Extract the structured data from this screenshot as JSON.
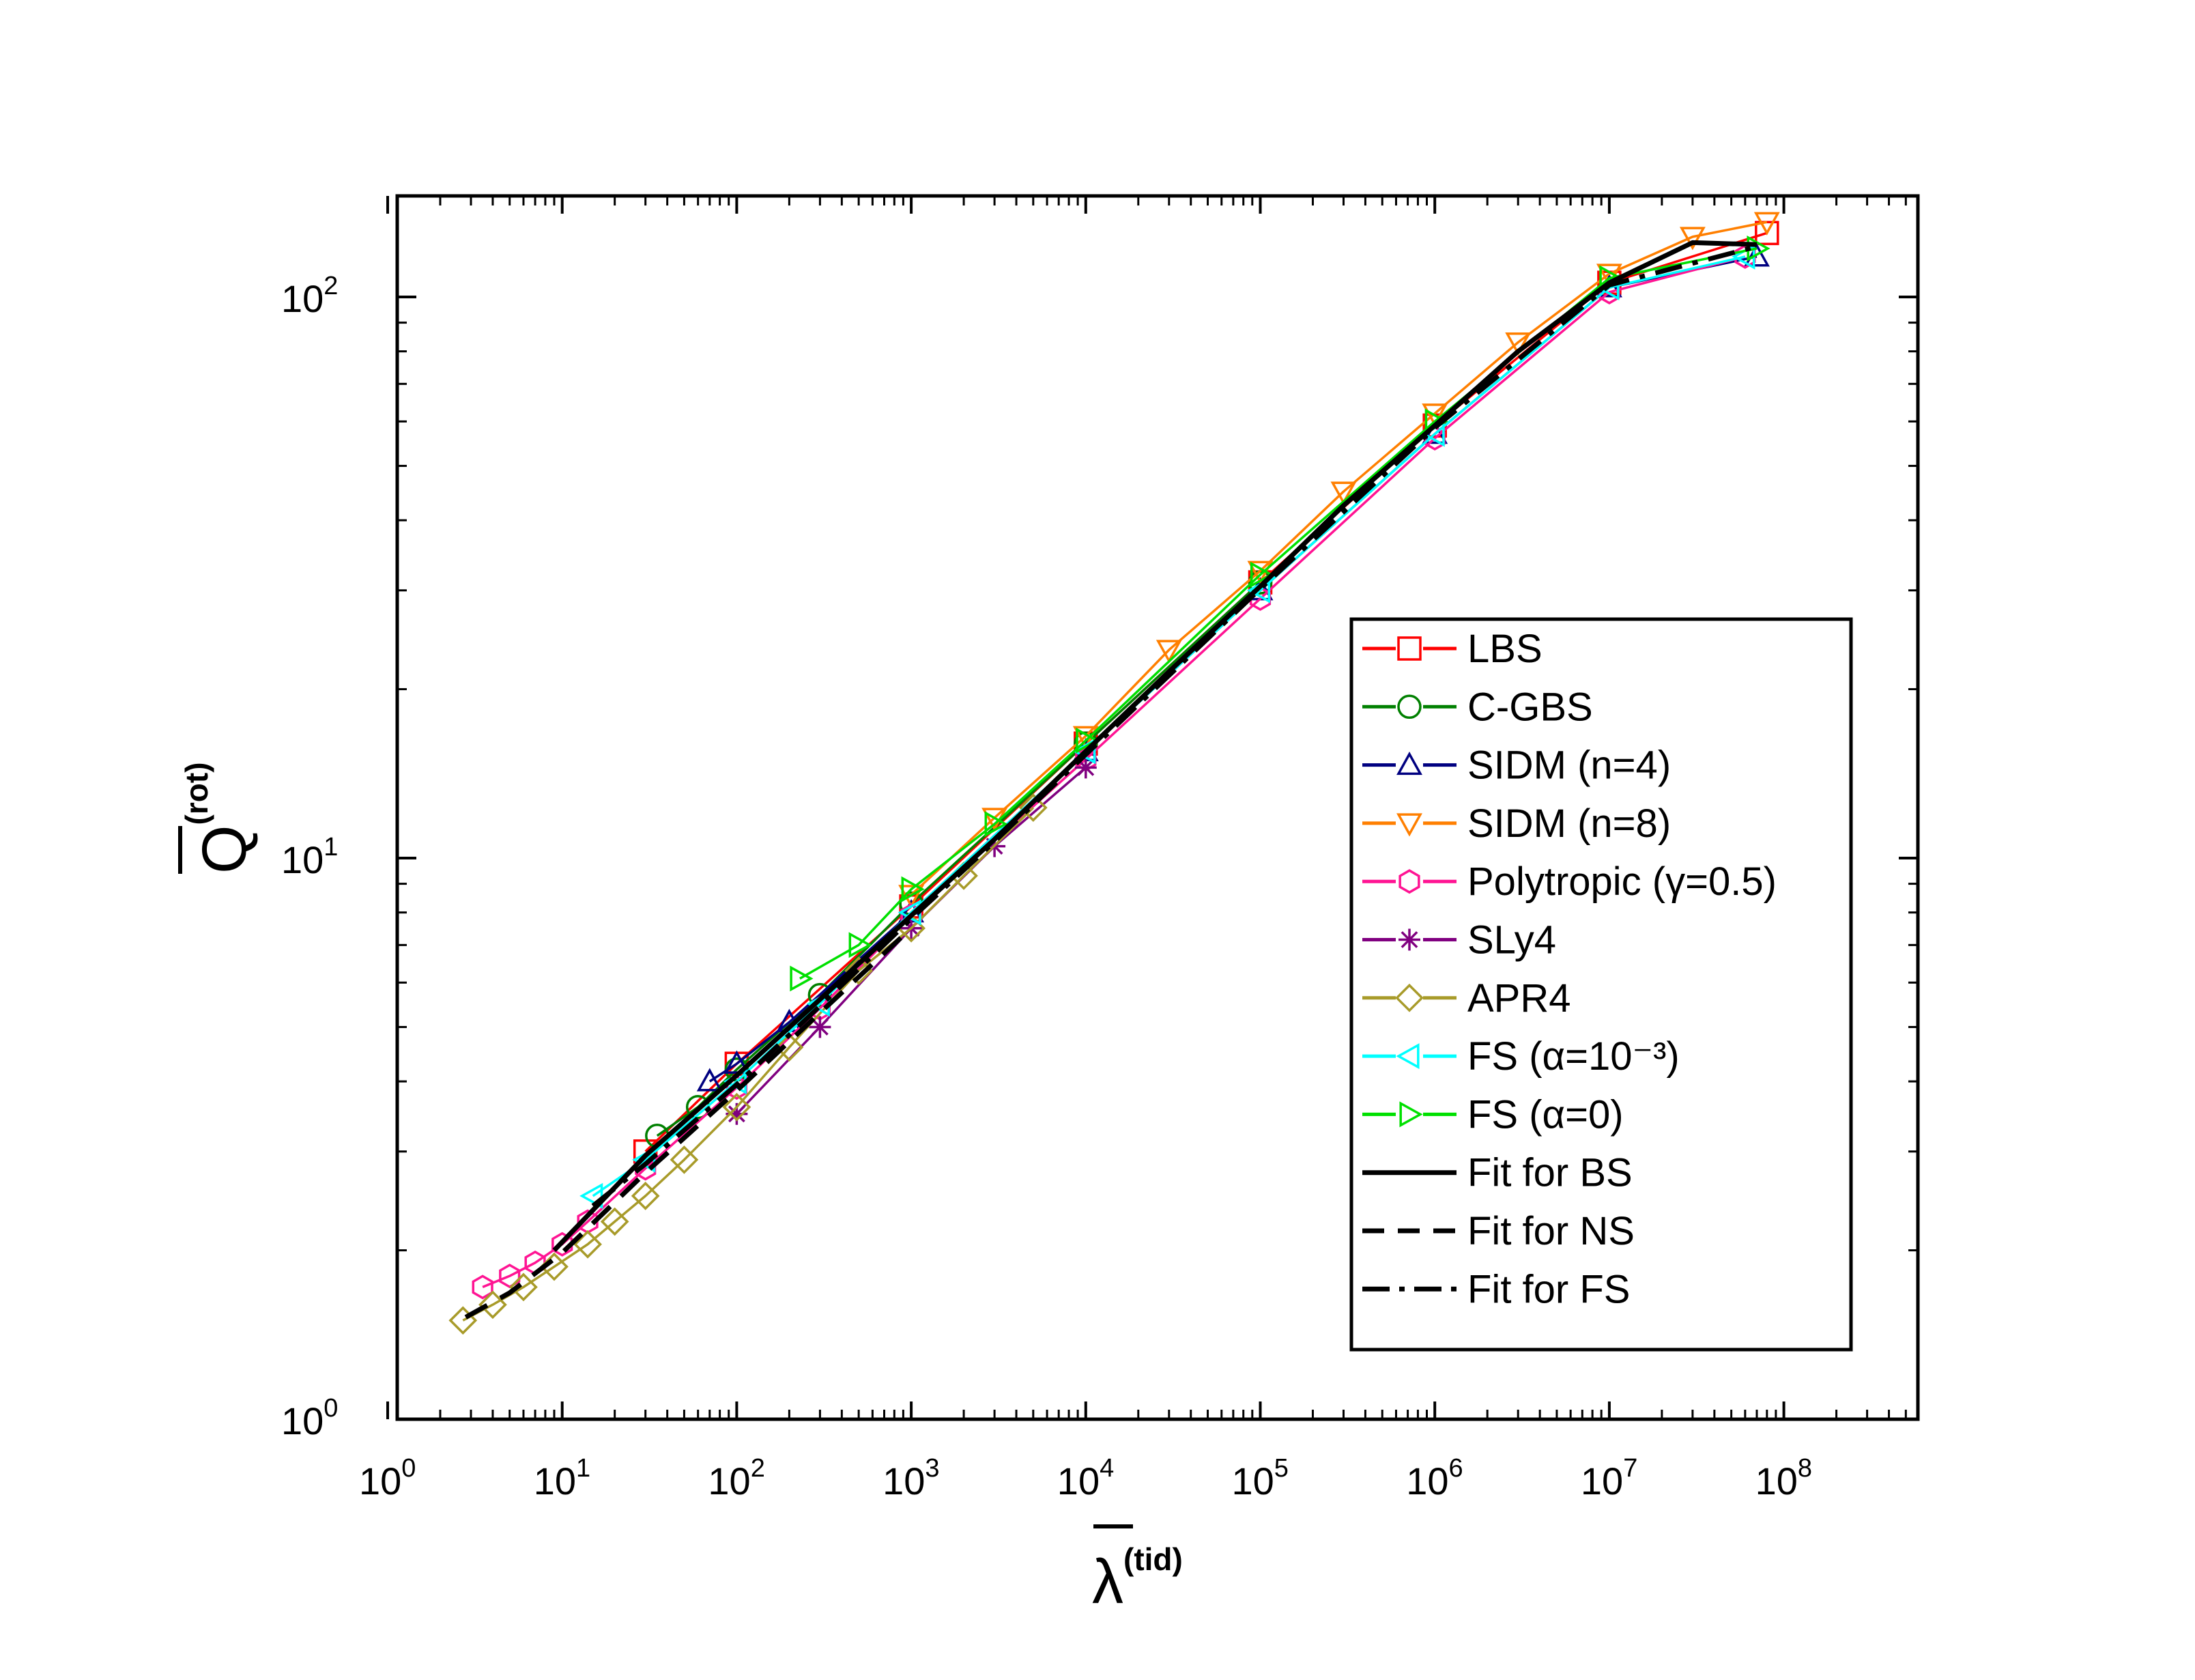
{
  "chart_data": {
    "type": "line",
    "title": "",
    "xlabel": "λ",
    "xlabel_sup": "(tid)",
    "ylabel": "Q",
    "ylabel_sup": "(rot)",
    "xscale": "log",
    "yscale": "log",
    "xlim": [
      1,
      500000000
    ],
    "ylim": [
      1,
      150
    ],
    "x_ticks": [
      {
        "base": "10",
        "exp": "0"
      },
      {
        "base": "10",
        "exp": "1"
      },
      {
        "base": "10",
        "exp": "2"
      },
      {
        "base": "10",
        "exp": "3"
      },
      {
        "base": "10",
        "exp": "4"
      },
      {
        "base": "10",
        "exp": "5"
      },
      {
        "base": "10",
        "exp": "6"
      },
      {
        "base": "10",
        "exp": "7"
      },
      {
        "base": "10",
        "exp": "8"
      }
    ],
    "y_ticks": [
      {
        "base": "10",
        "exp": "0"
      },
      {
        "base": "10",
        "exp": "1"
      },
      {
        "base": "10",
        "exp": "2"
      }
    ],
    "legend_position": "lower-right",
    "series": [
      {
        "name": "LBS",
        "color": "#ff0000",
        "marker": "square",
        "style": "solid",
        "x": [
          30,
          100,
          1000,
          10000,
          100000,
          1000000,
          10000000,
          80000000
        ],
        "y": [
          3.0,
          4.3,
          8.2,
          16.0,
          31.0,
          59.0,
          106.0,
          130.0
        ]
      },
      {
        "name": "C-GBS",
        "color": "#008000",
        "marker": "circle",
        "style": "solid",
        "x": [
          35,
          60,
          100,
          300,
          1000,
          10000,
          100000
        ],
        "y": [
          3.2,
          3.6,
          4.2,
          5.7,
          8.3,
          16.0,
          31.0
        ]
      },
      {
        "name": "SIDM (n=4)",
        "color": "#000080",
        "marker": "triangle-up",
        "style": "solid",
        "x": [
          70,
          100,
          200,
          1000,
          10000,
          100000,
          1000000,
          10000000,
          70000000
        ],
        "y": [
          4.0,
          4.3,
          5.1,
          8.0,
          15.5,
          30.0,
          57.0,
          104.0,
          118.0
        ]
      },
      {
        "name": "SIDM (n=8)",
        "color": "#ff7f00",
        "marker": "triangle-down",
        "style": "solid",
        "x": [
          1000,
          3000,
          10000,
          30000,
          100000,
          300000,
          1000000,
          3000000,
          10000000,
          30000000,
          80000000
        ],
        "y": [
          8.6,
          11.8,
          16.5,
          23.5,
          32.5,
          45.0,
          62.0,
          83.0,
          110.0,
          128.0,
          136.0
        ]
      },
      {
        "name": "Polytropic (γ=0.5)",
        "color": "#ff1493",
        "marker": "hexagon",
        "style": "solid",
        "x": [
          3.5,
          5,
          7,
          10,
          14,
          30,
          100,
          300,
          1000,
          10000,
          100000,
          1000000,
          10000000,
          60000000
        ],
        "y": [
          1.72,
          1.8,
          1.9,
          2.05,
          2.25,
          2.8,
          3.9,
          5.4,
          7.9,
          15.0,
          29.0,
          56.0,
          102.0,
          118.0
        ]
      },
      {
        "name": "SLy4",
        "color": "#800080",
        "marker": "asterisk",
        "style": "solid",
        "x": [
          100,
          300,
          1000,
          3000,
          10000
        ],
        "y": [
          3.5,
          5.0,
          7.5,
          10.5,
          14.5
        ]
      },
      {
        "name": "APR4",
        "color": "#a89b2a",
        "marker": "diamond",
        "style": "solid",
        "x": [
          2.7,
          4,
          6,
          9,
          14,
          20,
          30,
          50,
          100,
          200,
          500,
          1000,
          2000,
          5000
        ],
        "y": [
          1.5,
          1.6,
          1.72,
          1.87,
          2.05,
          2.25,
          2.5,
          2.9,
          3.6,
          4.6,
          6.3,
          7.5,
          9.3,
          12.3
        ]
      },
      {
        "name": "FS (α=10⁻³)",
        "color": "#00ffff",
        "marker": "triangle-left",
        "style": "solid",
        "x": [
          15,
          30,
          100,
          300,
          1000,
          10000,
          100000,
          1000000,
          10000000,
          60000000
        ],
        "y": [
          2.5,
          2.9,
          4.0,
          5.5,
          8.0,
          15.5,
          30.0,
          57.0,
          104.0,
          118.0
        ]
      },
      {
        "name": "FS (α=0)",
        "color": "#00e000",
        "marker": "triangle-right",
        "style": "solid",
        "x": [
          230,
          500,
          1000,
          3000,
          10000,
          100000,
          1000000,
          10000000,
          70000000
        ],
        "y": [
          6.1,
          7.0,
          8.8,
          11.5,
          16.2,
          32.0,
          60.0,
          108.0,
          122.0
        ]
      },
      {
        "name": "Fit for BS",
        "color": "#000000",
        "marker": "none",
        "style": "solid",
        "x": [
          9,
          30,
          100,
          300,
          1000,
          3000,
          10000,
          30000,
          100000,
          300000,
          1000000,
          3000000,
          10000000,
          30000000,
          70000000
        ],
        "y": [
          2.0,
          2.95,
          4.1,
          5.6,
          7.9,
          10.8,
          15.5,
          21.5,
          30.5,
          42.5,
          59.0,
          80.0,
          106.0,
          125.0,
          124.0
        ]
      },
      {
        "name": "Fit for NS",
        "color": "#000000",
        "marker": "none",
        "style": "dash",
        "x": [
          2.8,
          5,
          10,
          30,
          100,
          300,
          1000
        ],
        "y": [
          1.52,
          1.68,
          1.98,
          2.75,
          3.85,
          5.3,
          7.5
        ]
      },
      {
        "name": "Fit for FS",
        "color": "#000000",
        "marker": "none",
        "style": "dashdot",
        "x": [
          15,
          30,
          100,
          300,
          1000,
          3000,
          10000,
          100000,
          1000000,
          10000000,
          70000000
        ],
        "y": [
          2.4,
          2.85,
          3.95,
          5.45,
          7.8,
          10.7,
          15.3,
          30.2,
          58.5,
          105.0,
          123.0
        ]
      }
    ]
  }
}
